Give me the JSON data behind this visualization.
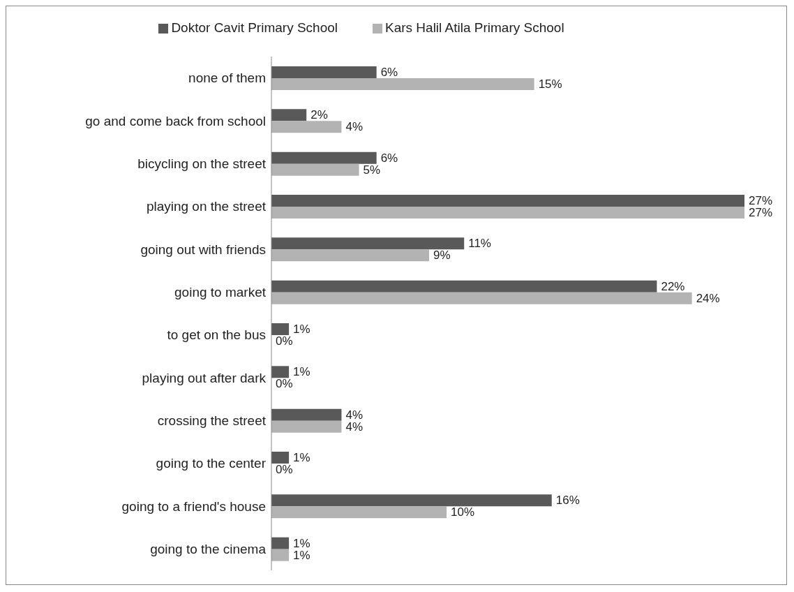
{
  "chart_data": {
    "type": "bar",
    "orientation": "horizontal",
    "legend": "top",
    "data_labels": false,
    "categories": [
      "none of them",
      "go and come back from school",
      "bicycling on the street",
      "playing on the street",
      "going out with friends",
      "going to market",
      "to get on the bus",
      "playing out after dark",
      "crossing the street",
      "going to the center",
      "going to a friend's house",
      "going to the cinema"
    ],
    "series": [
      {
        "name": "Doktor Cavit Primary School",
        "color": "#595959",
        "values": [
          6,
          2,
          6,
          27,
          11,
          22,
          1,
          1,
          4,
          1,
          16,
          1
        ],
        "value_labels": [
          "6%",
          "2%",
          "6%",
          "27%",
          "11%",
          "22%",
          "1%",
          "1%",
          "4%",
          "1%",
          "16%",
          "1%"
        ]
      },
      {
        "name": "Kars Halil Atila Primary School",
        "color": "#b3b3b3",
        "values": [
          15,
          4,
          5,
          27,
          9,
          24,
          0,
          0,
          4,
          0,
          10,
          1
        ],
        "value_labels": [
          "15%",
          "4%",
          "5%",
          "27%",
          "9%",
          "24%",
          "0%",
          "0%",
          "4%",
          "0%",
          "10%",
          "1%"
        ]
      }
    ]
  }
}
